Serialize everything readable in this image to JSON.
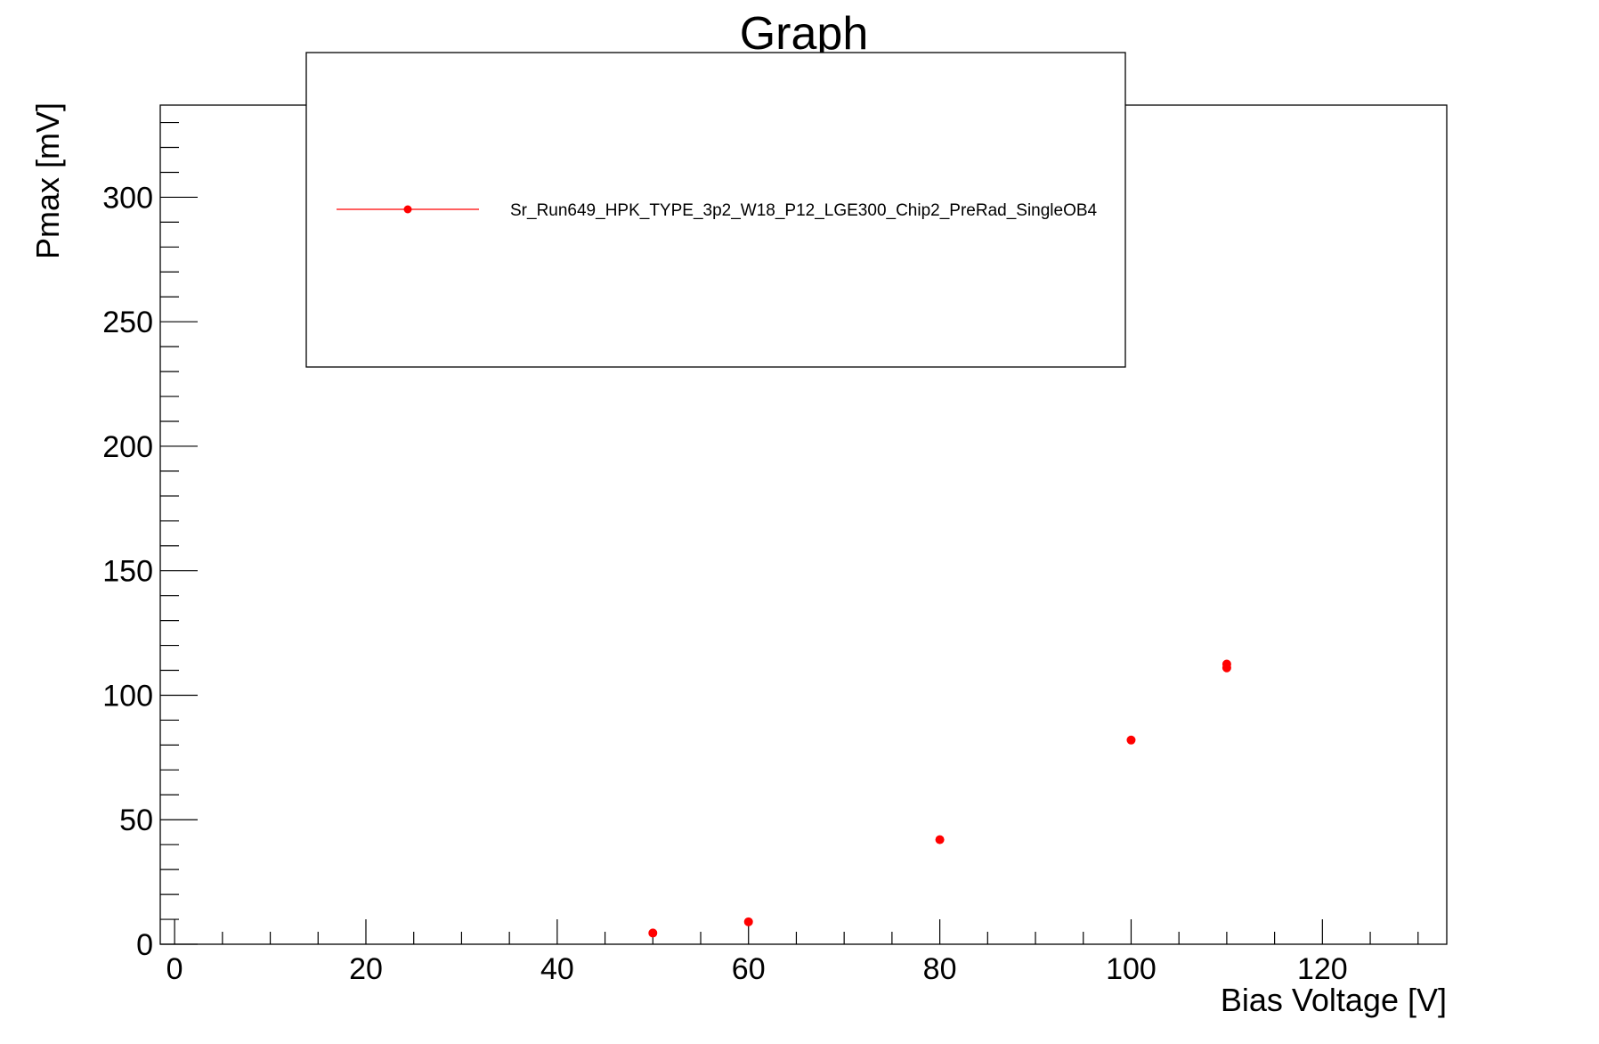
{
  "chart_data": {
    "type": "scatter",
    "title": "Graph",
    "xlabel": "Bias Voltage [V]",
    "ylabel": "Pmax [mV]",
    "xlim": [
      -1.5,
      133
    ],
    "ylim": [
      0,
      337
    ],
    "x_ticks": [
      0,
      20,
      40,
      60,
      80,
      100,
      120
    ],
    "y_ticks": [
      0,
      50,
      100,
      150,
      200,
      250,
      300
    ],
    "grid": false,
    "legend_position": "top-center",
    "series": [
      {
        "name": "Sr_Run649_HPK_TYPE_3p2_W18_P12_LGE300_Chip2_PreRad_SingleOB4",
        "color": "#ff0000",
        "x": [
          50,
          60,
          80,
          100,
          110,
          110
        ],
        "y": [
          4.5,
          9,
          42,
          82,
          111,
          112.5
        ]
      }
    ]
  }
}
